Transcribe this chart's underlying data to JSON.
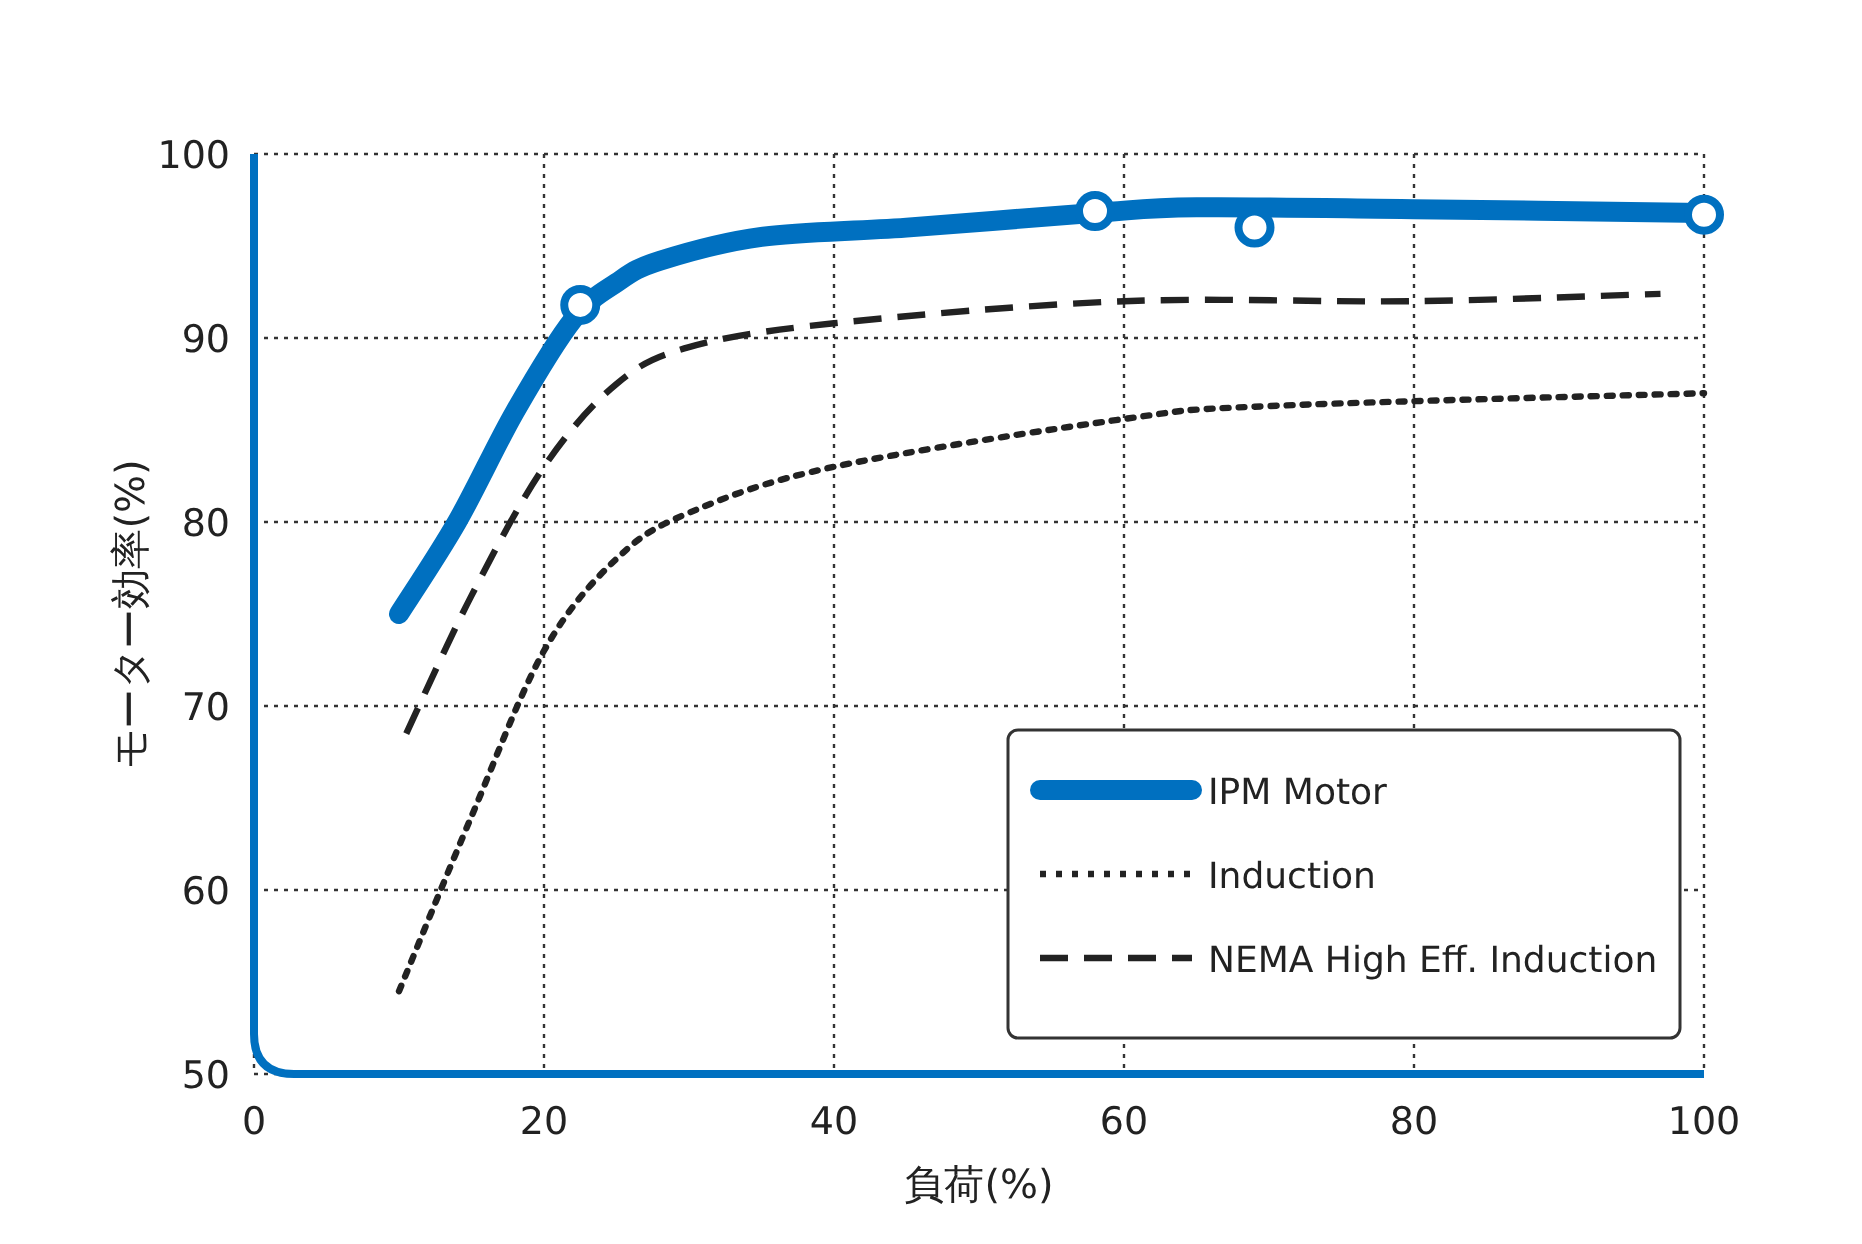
{
  "chart_data": {
    "type": "line",
    "xlabel": "負荷(%)",
    "ylabel": "モーター効率(%)",
    "xlim": [
      0,
      100
    ],
    "ylim": [
      50,
      100
    ],
    "xticks": [
      0,
      20,
      40,
      60,
      80,
      100
    ],
    "yticks": [
      50,
      60,
      70,
      80,
      90,
      100
    ],
    "grid": true,
    "legend": "bottom right",
    "series": [
      {
        "name": "IPM Motor",
        "color": "#0070c0",
        "line_style": "solid",
        "marker": "none",
        "x": [
          10,
          14,
          18,
          22,
          25,
          28,
          35,
          45,
          58,
          65,
          80,
          100
        ],
        "values": [
          75,
          80,
          86,
          91,
          93,
          94.2,
          95.5,
          96,
          96.8,
          97.1,
          97,
          96.8
        ]
      },
      {
        "type": "scatter",
        "color": "#0070c0",
        "marker": "circle",
        "x": [
          22.5,
          58,
          69,
          100
        ],
        "values": [
          91.8,
          96.9,
          96,
          96.7
        ]
      },
      {
        "name": "Induction",
        "color": "#222222",
        "line_style": "dotted",
        "marker": "none",
        "x": [
          10,
          15,
          20,
          25,
          30,
          40,
          60,
          70,
          100
        ],
        "values": [
          54.5,
          64,
          73,
          78,
          80.5,
          83,
          85.6,
          86.3,
          87
        ]
      },
      {
        "name": "NEMA High Eff. Induction",
        "color": "#222222",
        "line_style": "dashed",
        "marker": "none",
        "x": [
          10.5,
          15,
          20,
          25,
          30,
          40,
          60,
          80,
          97
        ],
        "values": [
          68.5,
          76,
          83,
          87.5,
          89.5,
          90.8,
          92,
          92,
          92.4
        ]
      }
    ]
  }
}
